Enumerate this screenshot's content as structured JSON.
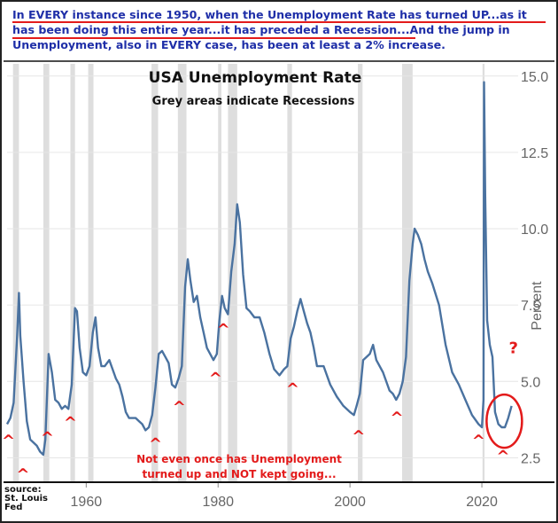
{
  "headline": {
    "line1": "In EVERY instance since 1950, when the Unemployment Rate has turned UP...as it",
    "line2": "has been doing this entire year...it has preceded a Recession...And the jump in",
    "line3": "Unemployment, also in EVERY case, has been at least a 2% increase."
  },
  "source": {
    "line1": "source:",
    "line2": "St. Louis",
    "line3": "Fed"
  },
  "colors": {
    "line": "#4a72a0",
    "recession": "#dedede",
    "marker": "#e31b1b",
    "headline": "#1f2fa8"
  },
  "chart_data": {
    "type": "line",
    "title": "USA Unemployment Rate",
    "subtitle": "Grey areas indicate Recessions",
    "ylabel": "Percent",
    "xlabel": "",
    "xlim": [
      1948,
      2025.5
    ],
    "ylim": [
      1.7,
      15.4
    ],
    "xticks": [
      1960,
      1980,
      2000,
      2020
    ],
    "yticks": [
      2.5,
      5.0,
      7.5,
      10.0,
      12.5,
      15.0
    ],
    "ytick_labels": [
      "2.5",
      "5.0",
      "7.5",
      "10.0",
      "12.5",
      "15.0"
    ],
    "grid": "horizontal",
    "recessions": [
      [
        1948.9,
        1949.8
      ],
      [
        1953.5,
        1954.4
      ],
      [
        1957.6,
        1958.3
      ],
      [
        1960.3,
        1961.1
      ],
      [
        1969.9,
        1970.9
      ],
      [
        1973.9,
        1975.2
      ],
      [
        1980.0,
        1980.5
      ],
      [
        1981.5,
        1982.9
      ],
      [
        1990.5,
        1991.2
      ],
      [
        2001.2,
        2001.9
      ],
      [
        2007.9,
        2009.5
      ],
      [
        2020.1,
        2020.4
      ]
    ],
    "series": [
      {
        "name": "",
        "x": [
          1948.0,
          1948.5,
          1949.0,
          1949.5,
          1949.8,
          1950.0,
          1950.5,
          1951.0,
          1951.5,
          1952.0,
          1952.5,
          1953.0,
          1953.5,
          1953.8,
          1954.3,
          1954.8,
          1955.3,
          1955.8,
          1956.3,
          1956.8,
          1957.3,
          1957.8,
          1958.3,
          1958.6,
          1959.0,
          1959.5,
          1960.0,
          1960.5,
          1961.0,
          1961.4,
          1961.8,
          1962.3,
          1962.8,
          1963.5,
          1964.0,
          1964.5,
          1965.0,
          1965.5,
          1966.0,
          1966.5,
          1967.0,
          1967.5,
          1968.0,
          1968.5,
          1969.0,
          1969.5,
          1970.0,
          1970.5,
          1971.0,
          1971.5,
          1972.0,
          1972.5,
          1973.0,
          1973.5,
          1974.0,
          1974.5,
          1975.0,
          1975.4,
          1975.8,
          1976.3,
          1976.8,
          1977.3,
          1977.8,
          1978.3,
          1978.8,
          1979.3,
          1979.8,
          1980.2,
          1980.6,
          1981.0,
          1981.5,
          1982.0,
          1982.5,
          1982.9,
          1983.3,
          1983.8,
          1984.3,
          1984.8,
          1985.5,
          1986.3,
          1987.0,
          1987.8,
          1988.5,
          1989.3,
          1990.0,
          1990.5,
          1991.0,
          1991.5,
          1992.0,
          1992.5,
          1993.0,
          1993.5,
          1994.0,
          1994.5,
          1995.0,
          1996.0,
          1997.0,
          1998.0,
          1999.0,
          2000.0,
          2000.6,
          2001.0,
          2001.5,
          2002.0,
          2002.5,
          2003.0,
          2003.5,
          2004.0,
          2005.0,
          2006.0,
          2006.5,
          2007.0,
          2007.5,
          2008.0,
          2008.5,
          2009.0,
          2009.5,
          2009.8,
          2010.3,
          2010.8,
          2011.3,
          2011.8,
          2012.5,
          2013.5,
          2014.5,
          2015.5,
          2016.5,
          2017.5,
          2018.5,
          2019.5,
          2020.0,
          2020.25,
          2020.33,
          2020.5,
          2020.8,
          2021.2,
          2021.6,
          2022.0,
          2022.5,
          2023.0,
          2023.5,
          2024.0,
          2024.5
        ],
        "values": [
          3.6,
          3.8,
          4.3,
          6.4,
          7.9,
          6.5,
          5.0,
          3.7,
          3.1,
          3.0,
          2.9,
          2.7,
          2.6,
          3.1,
          5.9,
          5.3,
          4.4,
          4.3,
          4.1,
          4.2,
          4.1,
          4.9,
          7.4,
          7.3,
          6.1,
          5.3,
          5.2,
          5.5,
          6.6,
          7.1,
          6.1,
          5.5,
          5.5,
          5.7,
          5.4,
          5.1,
          4.9,
          4.5,
          4.0,
          3.8,
          3.8,
          3.8,
          3.7,
          3.6,
          3.4,
          3.5,
          3.9,
          4.8,
          5.9,
          6.0,
          5.8,
          5.6,
          4.9,
          4.8,
          5.1,
          5.5,
          8.1,
          9.0,
          8.3,
          7.6,
          7.8,
          7.1,
          6.6,
          6.1,
          5.9,
          5.7,
          5.9,
          7.0,
          7.8,
          7.4,
          7.2,
          8.6,
          9.5,
          10.8,
          10.2,
          8.5,
          7.4,
          7.3,
          7.1,
          7.1,
          6.6,
          5.9,
          5.4,
          5.2,
          5.4,
          5.5,
          6.4,
          6.8,
          7.3,
          7.7,
          7.3,
          6.9,
          6.6,
          6.1,
          5.5,
          5.5,
          4.9,
          4.5,
          4.2,
          4.0,
          3.9,
          4.2,
          4.6,
          5.7,
          5.8,
          5.9,
          6.2,
          5.7,
          5.3,
          4.7,
          4.6,
          4.4,
          4.6,
          5.0,
          5.8,
          8.3,
          9.5,
          10.0,
          9.8,
          9.5,
          9.0,
          8.6,
          8.2,
          7.5,
          6.2,
          5.3,
          4.9,
          4.4,
          3.9,
          3.6,
          3.5,
          4.4,
          14.8,
          11.1,
          7.0,
          6.2,
          5.8,
          4.0,
          3.6,
          3.5,
          3.5,
          3.8,
          4.2
        ]
      }
    ],
    "annotations": {
      "markers": [
        [
          1948.2,
          3.15
        ],
        [
          1950.4,
          2.05
        ],
        [
          1954.1,
          3.25
        ],
        [
          1957.6,
          3.75
        ],
        [
          1970.5,
          3.05
        ],
        [
          1974.1,
          4.25
        ],
        [
          1979.6,
          5.2
        ],
        [
          1980.8,
          6.8
        ],
        [
          1991.3,
          4.85
        ],
        [
          2001.3,
          3.3
        ],
        [
          2007.1,
          3.9
        ],
        [
          2019.5,
          3.15
        ],
        [
          2023.2,
          2.65
        ]
      ],
      "marker_symbol": "^",
      "question_symbol": "?",
      "question_at": [
        2024.8,
        6.1
      ],
      "circle_center": [
        2023.4,
        3.7
      ],
      "note_line1": "Not even once has Unemployment",
      "note_line2": "turned up and NOT kept going..."
    }
  }
}
